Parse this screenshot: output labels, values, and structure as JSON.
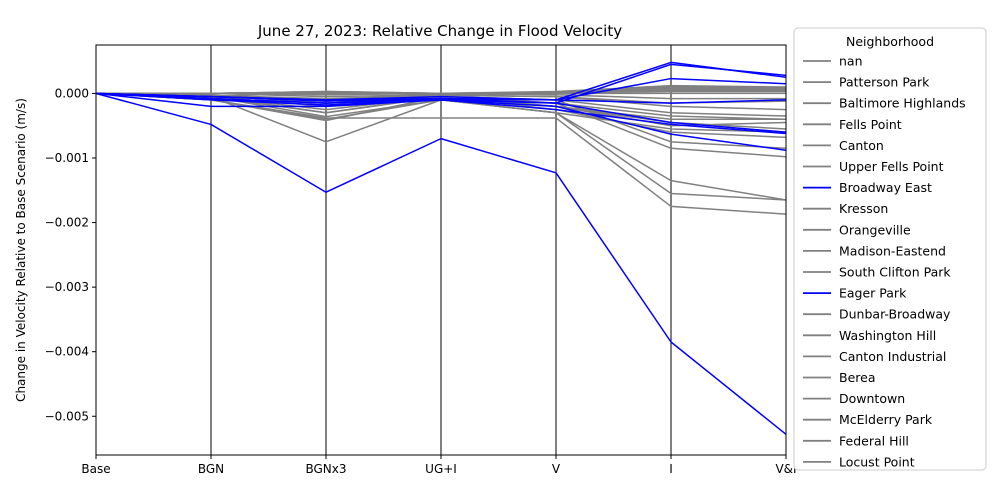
{
  "chart_data": {
    "type": "line",
    "title": "June 27, 2023: Relative Change in Flood Velocity",
    "xlabel": "",
    "ylabel": "Change in Velocity Relative to Base Scenario (m/s)",
    "categories": [
      "Base",
      "BGN",
      "BGNx3",
      "UG+I",
      "V",
      "I",
      "V&I"
    ],
    "ylim": [
      -0.0056,
      0.00075
    ],
    "yticks": [
      0.0,
      -0.001,
      -0.002,
      -0.003,
      -0.004,
      -0.005
    ],
    "ytick_labels": [
      "0.000",
      "−0.001",
      "−0.002",
      "−0.003",
      "−0.004",
      "−0.005"
    ],
    "grid": "vertical lines at each category",
    "legend_title": "Neighborhood",
    "legend_position": "outside right",
    "highlight_color": "#0000ff",
    "other_color": "#808080",
    "series": [
      {
        "name": "nan",
        "color": "#808080",
        "values": [
          0,
          -5e-05,
          2e-05,
          -2e-05,
          2e-05,
          5e-05,
          5e-05
        ]
      },
      {
        "name": "Patterson Park",
        "color": "#808080",
        "values": [
          0,
          -5e-05,
          -0.00036,
          -0.0001,
          -0.0003,
          -0.00055,
          -0.0006
        ]
      },
      {
        "name": "Baltimore Highlands",
        "color": "#808080",
        "values": [
          0,
          -0.0001,
          -0.00038,
          -0.00038,
          -0.00038,
          -0.00175,
          -0.00187
        ]
      },
      {
        "name": "Fells Point",
        "color": "#808080",
        "values": [
          0,
          -5e-05,
          -0.0003,
          -5e-05,
          -0.0002,
          -0.0005,
          -0.00045
        ]
      },
      {
        "name": "Canton",
        "color": "#808080",
        "values": [
          0,
          -0.0001,
          -0.00042,
          -5e-05,
          -0.00025,
          -0.0006,
          -0.00068
        ]
      },
      {
        "name": "Upper Fells Point",
        "color": "#808080",
        "values": [
          0,
          -5e-05,
          -0.0002,
          -0.0001,
          -0.0002,
          -0.0004,
          -0.0004
        ]
      },
      {
        "name": "Broadway East",
        "color": "#0000ff",
        "values": [
          0,
          -0.00048,
          -0.00153,
          -0.0007,
          -0.00123,
          -0.00385,
          -0.00528
        ]
      },
      {
        "name": "Kresson",
        "color": "#808080",
        "values": [
          0,
          -5e-05,
          -0.00075,
          -0.0001,
          -0.0003,
          -0.00155,
          -0.00165
        ]
      },
      {
        "name": "Orangeville",
        "color": "#808080",
        "values": [
          0,
          -0.0001,
          -0.0004,
          -0.0001,
          -0.0003,
          -0.00135,
          -0.00165
        ]
      },
      {
        "name": "Madison-Eastend",
        "color": "#808080",
        "values": [
          0,
          -5e-05,
          -0.00025,
          -5e-05,
          -0.00015,
          -0.00085,
          -0.00098
        ]
      },
      {
        "name": "South Clifton Park",
        "color": "#808080",
        "values": [
          0,
          -3e-05,
          -0.00015,
          -5e-05,
          -0.0001,
          -0.00075,
          -0.00085
        ]
      },
      {
        "name": "Eager Park",
        "color": "#0000ff",
        "values": [
          0,
          -0.0002,
          -0.0002,
          -0.0001,
          -0.0002,
          -0.00063,
          -0.00088
        ]
      },
      {
        "name": "Dunbar-Broadway",
        "color": "#808080",
        "values": [
          0,
          -5e-05,
          -0.0001,
          -5e-05,
          -0.0001,
          -0.0003,
          -0.00035
        ]
      },
      {
        "name": "Washington Hill",
        "color": "#808080",
        "values": [
          0,
          -3e-05,
          -0.0001,
          -3e-05,
          -5e-05,
          -0.0002,
          -0.00025
        ]
      },
      {
        "name": "Canton Industrial",
        "color": "#808080",
        "values": [
          0,
          -5e-05,
          -0.0003,
          -5e-05,
          -0.0002,
          -0.00045,
          -0.00055
        ]
      },
      {
        "name": "Berea",
        "color": "#808080",
        "values": [
          0,
          -3e-05,
          -8e-05,
          -3e-05,
          0.0,
          0.0001,
          8e-05
        ]
      },
      {
        "name": "Downtown",
        "color": "#808080",
        "values": [
          0,
          0.0,
          3e-05,
          0.0,
          3e-05,
          0.00012,
          0.0001
        ]
      },
      {
        "name": "McElderry Park",
        "color": "#808080",
        "values": [
          0,
          -3e-05,
          -0.00012,
          -5e-05,
          -0.00015,
          -0.00035,
          -0.0004
        ]
      },
      {
        "name": "Federal Hill",
        "color": "#808080",
        "values": [
          0,
          0.0,
          2e-05,
          0.0,
          2e-05,
          8e-05,
          6e-05
        ]
      },
      {
        "name": "Locust Point",
        "color": "#808080",
        "values": [
          0,
          0.0,
          1e-05,
          0.0,
          1e-05,
          5e-05,
          4e-05
        ]
      }
    ],
    "extra_series": [
      {
        "color": "#0000ff",
        "values": [
          0,
          -5e-05,
          -0.0001,
          -8e-05,
          -0.0001,
          0.00048,
          0.00025
        ]
      },
      {
        "color": "#0000ff",
        "values": [
          0,
          -5e-05,
          -0.00012,
          -8e-05,
          -0.00015,
          0.00045,
          0.00028
        ]
      },
      {
        "color": "#0000ff",
        "values": [
          0,
          -8e-05,
          -0.00015,
          -8e-05,
          -0.0001,
          0.00023,
          0.00015
        ]
      },
      {
        "color": "#0000ff",
        "values": [
          0,
          -0.0001,
          -0.00018,
          -0.0001,
          -0.00015,
          -0.00045,
          -0.0006
        ]
      },
      {
        "color": "#0000ff",
        "values": [
          0,
          -8e-05,
          -0.00015,
          -0.0001,
          -0.00025,
          -0.00048,
          -0.00062
        ]
      },
      {
        "color": "#0000ff",
        "values": [
          0,
          -5e-05,
          -0.0001,
          -5e-05,
          -0.0001,
          -0.00015,
          -0.0001
        ]
      },
      {
        "color": "#808080",
        "values": [
          0,
          0.0,
          3e-05,
          0.0,
          2e-05,
          0.0001,
          8e-05
        ]
      },
      {
        "color": "#808080",
        "values": [
          0,
          0.0,
          2e-05,
          0.0,
          1e-05,
          6e-05,
          5e-05
        ]
      },
      {
        "color": "#808080",
        "values": [
          0,
          0.0,
          1e-05,
          0.0,
          1e-05,
          3e-05,
          3e-05
        ]
      },
      {
        "color": "#808080",
        "values": [
          0,
          0.0,
          -2e-05,
          0.0,
          -2e-05,
          -8e-05,
          -8e-05
        ]
      },
      {
        "color": "#808080",
        "values": [
          0,
          0.0,
          -5e-05,
          -2e-05,
          -5e-05,
          -0.00015,
          -0.00012
        ]
      },
      {
        "color": "#808080",
        "values": [
          0,
          0.0,
          0.0,
          0.0,
          0.0,
          0.0,
          0.0
        ]
      }
    ]
  }
}
